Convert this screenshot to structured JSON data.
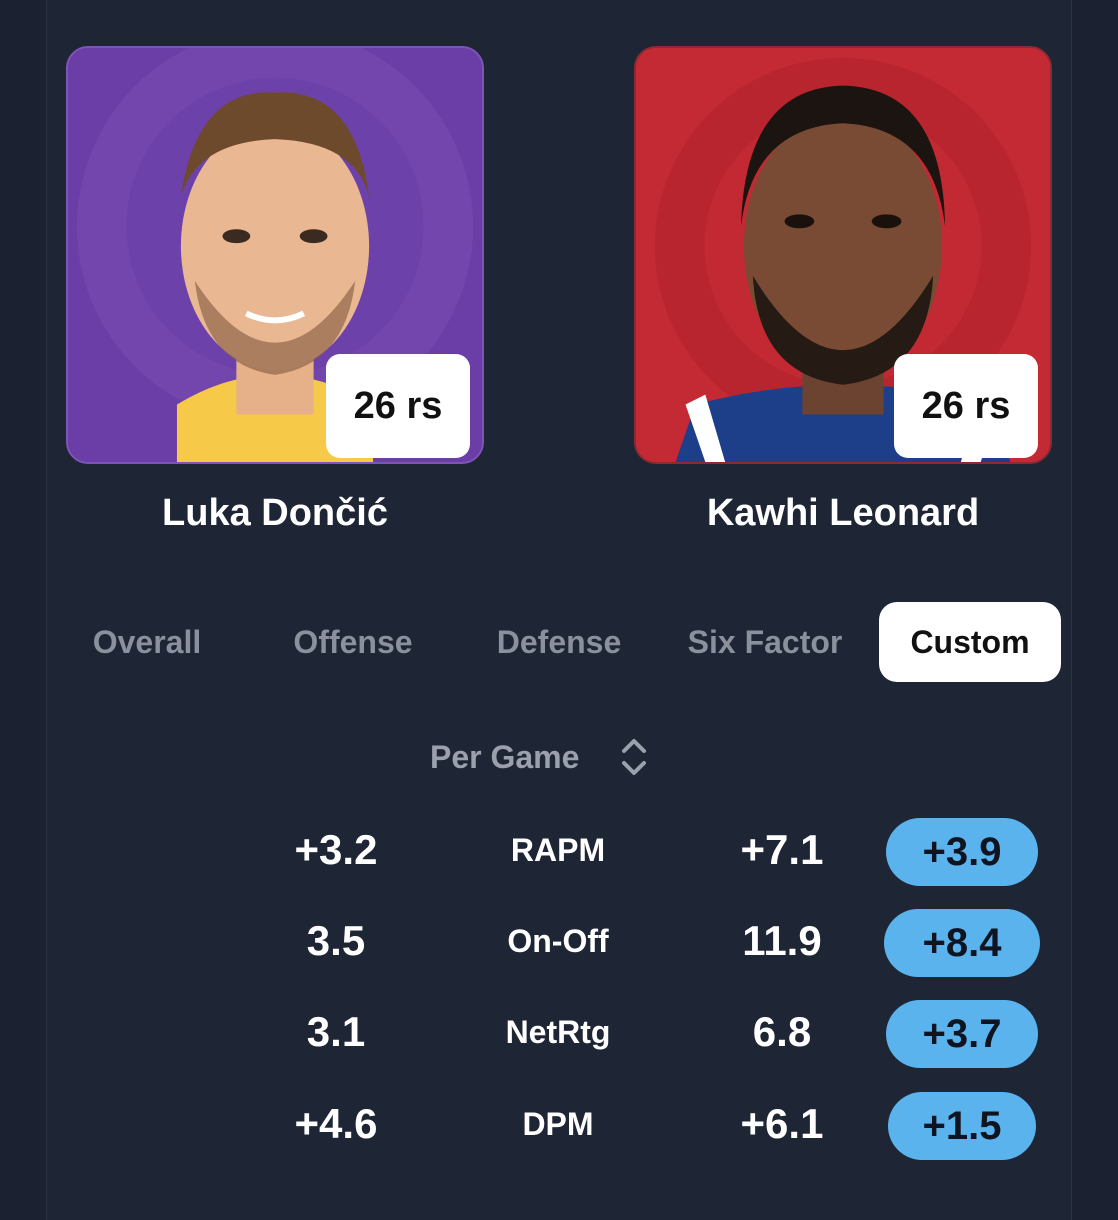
{
  "players": {
    "left": {
      "name": "Luka Dončić",
      "badge": "26 rs",
      "team_color": "#6a3ea6",
      "jersey_color": "#f7c948"
    },
    "right": {
      "name": "Kawhi Leonard",
      "badge": "26 rs",
      "team_color": "#c42a33",
      "jersey_color": "#1d3f8a"
    }
  },
  "tabs": [
    {
      "label": "Overall",
      "active": false
    },
    {
      "label": "Offense",
      "active": false
    },
    {
      "label": "Defense",
      "active": false
    },
    {
      "label": "Six Factor",
      "active": false
    },
    {
      "label": "Custom",
      "active": true
    }
  ],
  "selector": {
    "label": "Per Game",
    "icon": "chevron-up-down-icon"
  },
  "stats": [
    {
      "metric": "RAPM",
      "left": "+3.2",
      "right": "+7.1",
      "diff": "+3.9"
    },
    {
      "metric": "On-Off",
      "left": "3.5",
      "right": "11.9",
      "diff": "+8.4"
    },
    {
      "metric": "NetRtg",
      "left": "3.1",
      "right": "6.8",
      "diff": "+3.7"
    },
    {
      "metric": "DPM",
      "left": "+4.6",
      "right": "+6.1",
      "diff": "+1.5"
    }
  ],
  "colors": {
    "background": "#1e2535",
    "accent": "#5bb3ee",
    "muted_text": "#8a909c"
  }
}
